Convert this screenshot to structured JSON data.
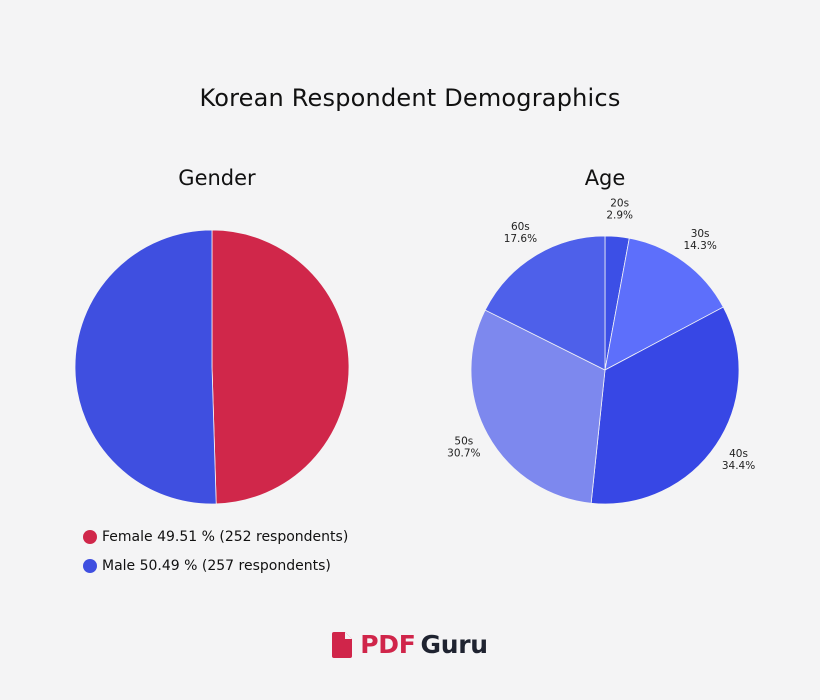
{
  "title": "Korean Respondent Demographics",
  "colors": {
    "female": "#d0274a",
    "male": "#3f4fe0",
    "age": [
      "#3c4fe6",
      "#5d6ffb",
      "#3747e5",
      "#7d88ee",
      "#4e60ea"
    ],
    "brand_red": "#d0254a",
    "brand_dark": "#1f2330"
  },
  "chart_data": [
    {
      "type": "pie",
      "title": "Gender",
      "categories": [
        "Female",
        "Male"
      ],
      "values": [
        49.51,
        50.49
      ],
      "respondents": [
        252,
        257
      ],
      "legend": [
        {
          "label": "Female 49.51 %",
          "count": "(252 respondents)"
        },
        {
          "label": "Male 50.49 %",
          "count": "(257 respondents)"
        }
      ],
      "legend_position": "bottom-left"
    },
    {
      "type": "pie",
      "title": "Age",
      "categories": [
        "20s",
        "30s",
        "40s",
        "50s",
        "60s"
      ],
      "values": [
        2.9,
        14.3,
        34.4,
        30.7,
        17.6
      ],
      "value_labels": [
        "2.9%",
        "14.3%",
        "34.4%",
        "30.7%",
        "17.6%"
      ]
    }
  ],
  "logo": {
    "pdf": "PDF",
    "guru": "Guru",
    "icon": "pdf-document-icon"
  }
}
